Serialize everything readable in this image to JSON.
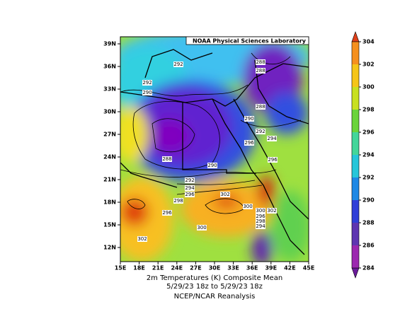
{
  "map": {
    "credit": "NOAA Physical Sciences Laboratory",
    "lat_labels": [
      "39N",
      "36N",
      "33N",
      "30N",
      "27N",
      "24N",
      "21N",
      "18N",
      "15N",
      "12N"
    ],
    "lon_labels": [
      "15E",
      "18E",
      "21E",
      "24E",
      "27E",
      "30E",
      "33E",
      "36E",
      "39E",
      "42E",
      "45E"
    ],
    "contour_labels": [
      "292",
      "288",
      "288",
      "292",
      "290",
      "288",
      "290",
      "292",
      "296",
      "294",
      "288",
      "290",
      "296",
      "292",
      "294",
      "296",
      "298",
      "302",
      "300",
      "300",
      "302",
      "296",
      "298",
      "294",
      "296",
      "300",
      "302"
    ],
    "title_lines": [
      "2m Temperatures (K)   Composite Mean",
      "5/29/23 18z  to 5/29/23 18z",
      "NCEP/NCAR Reanalysis"
    ],
    "colorbar": {
      "range": [
        284,
        304
      ],
      "ticks": [
        284,
        286,
        288,
        290,
        292,
        294,
        296,
        298,
        300,
        302,
        304
      ],
      "colors": [
        "#6a1b9a",
        "#9c27b0",
        "#5e35b1",
        "#303fd8",
        "#1e88e5",
        "#26c6da",
        "#43d69a",
        "#6ad43a",
        "#c8e020",
        "#f5c518",
        "#f5901e",
        "#e0401a"
      ]
    }
  }
}
